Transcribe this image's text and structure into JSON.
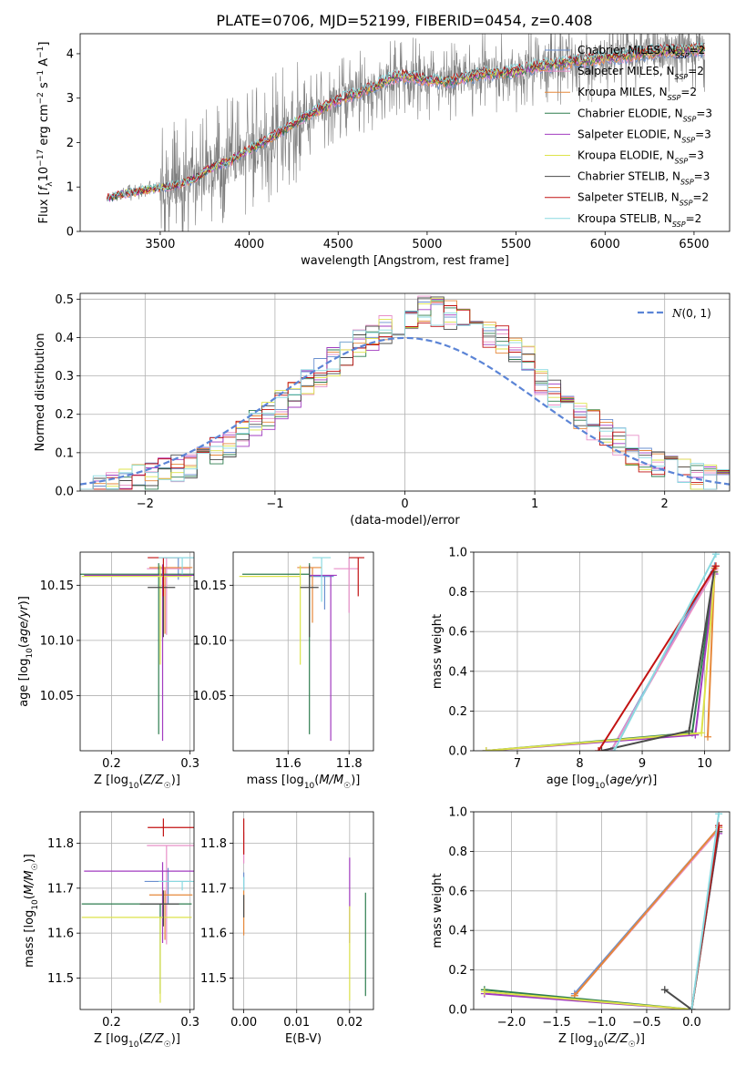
{
  "title": "PLATE=0706, MJD=52199, FIBERID=0454, z=0.408",
  "colors": {
    "Chabrier MILES": "#6a8fcf",
    "Salpeter MILES": "#e88fc8",
    "Kroupa MILES": "#e6883a",
    "Chabrier ELODIE": "#2e7d4f",
    "Salpeter ELODIE": "#a23bc0",
    "Kroupa ELODIE": "#dde34a",
    "Chabrier STELIB": "#4a4a4a",
    "Salpeter STELIB": "#c21212",
    "Kroupa STELIB": "#8ad9e0",
    "data": "#7f7f7f"
  },
  "chart_data": [
    {
      "id": "spectrum",
      "type": "line",
      "xlabel": "wavelength [Angstrom, rest frame]",
      "ylabel": "Flux [f_λ 10^-17 erg cm^-2 s^-1 A^-1]",
      "xlim": [
        3050,
        6700
      ],
      "ylim": [
        0,
        4.45
      ],
      "xticks": [
        3500,
        4000,
        4500,
        5000,
        5500,
        6000,
        6500
      ],
      "yticks": [
        0,
        1,
        2,
        3,
        4
      ],
      "legend": "right",
      "legend_entries": [
        {
          "label": "Chabrier MILES, N",
          "sub": "SSP",
          "tail": "=2"
        },
        {
          "label": "Salpeter MILES, N",
          "sub": "SSP",
          "tail": "=2"
        },
        {
          "label": "Kroupa MILES, N",
          "sub": "SSP",
          "tail": "=2"
        },
        {
          "label": "Chabrier ELODIE, N",
          "sub": "SSP",
          "tail": "=3"
        },
        {
          "label": "Salpeter ELODIE, N",
          "sub": "SSP",
          "tail": "=3"
        },
        {
          "label": "Kroupa ELODIE, N",
          "sub": "SSP",
          "tail": "=3"
        },
        {
          "label": "Chabrier STELIB, N",
          "sub": "SSP",
          "tail": "=3"
        },
        {
          "label": "Salpeter STELIB, N",
          "sub": "SSP",
          "tail": "=2"
        },
        {
          "label": "Kroupa STELIB, N",
          "sub": "SSP",
          "tail": "=2"
        }
      ],
      "model_continuum": {
        "x": [
          3200,
          3300,
          3400,
          3500,
          3600,
          3700,
          3800,
          3900,
          4000,
          4100,
          4200,
          4300,
          4400,
          4500,
          4600,
          4700,
          4800,
          4900,
          5000,
          5100,
          5200,
          5300,
          5400,
          5500,
          5600,
          5700,
          5800,
          5900,
          6000,
          6100,
          6200,
          6300,
          6400,
          6500
        ],
        "y": [
          0.75,
          0.85,
          0.92,
          0.98,
          1.05,
          1.2,
          1.45,
          1.6,
          1.85,
          2.05,
          2.3,
          2.55,
          2.75,
          2.95,
          3.1,
          3.25,
          3.45,
          3.5,
          3.4,
          3.35,
          3.45,
          3.55,
          3.55,
          3.6,
          3.7,
          3.75,
          3.8,
          3.85,
          3.9,
          3.95,
          4.0,
          4.05,
          4.05,
          4.1
        ]
      }
    },
    {
      "id": "residuals",
      "type": "line",
      "xlabel": "(data-model)/error",
      "ylabel": "Normed distribution",
      "xlim": [
        -2.5,
        2.5
      ],
      "ylim": [
        0,
        0.515
      ],
      "xticks": [
        -2,
        -1,
        0,
        1,
        2
      ],
      "yticks": [
        0.0,
        0.1,
        0.2,
        0.3,
        0.4,
        0.5
      ],
      "grid": true,
      "legend": "top-right",
      "legend_label": "N(0, 1)",
      "histogram_bin_width": 0.1
    },
    {
      "id": "age-vs-Z",
      "type": "scatter",
      "xlabel": "Z [log10(Z/Z☉)]",
      "ylabel": "age  [log10(age/yr)]",
      "xlim": [
        0.16,
        0.305
      ],
      "ylim": [
        10.0,
        10.18
      ],
      "xticks": [
        0.2,
        0.3
      ],
      "yticks": [
        10.05,
        10.1,
        10.15
      ],
      "grid": true,
      "points": [
        {
          "model": "Chabrier MILES",
          "x": 0.285,
          "y": 10.175,
          "xerr": [
            0.02,
            0.02
          ],
          "yerr": [
            0.02,
            0.0
          ]
        },
        {
          "model": "Salpeter MILES",
          "x": 0.27,
          "y": 10.165,
          "xerr": [
            0.025,
            0.03
          ],
          "yerr": [
            0.06,
            0.01
          ]
        },
        {
          "model": "Kroupa MILES",
          "x": 0.268,
          "y": 10.166,
          "xerr": [
            0.02,
            0.035
          ],
          "yerr": [
            0.06,
            0.0
          ]
        },
        {
          "model": "Chabrier ELODIE",
          "x": 0.26,
          "y": 10.16,
          "xerr": [
            0.1,
            0.05
          ],
          "yerr": [
            0.145,
            0.01
          ]
        },
        {
          "model": "Salpeter ELODIE",
          "x": 0.265,
          "y": 10.159,
          "xerr": [
            0.1,
            0.04
          ],
          "yerr": [
            0.15,
            0.01
          ]
        },
        {
          "model": "Kroupa ELODIE",
          "x": 0.262,
          "y": 10.158,
          "xerr": [
            0.1,
            0.04
          ],
          "yerr": [
            0.08,
            0.01
          ]
        },
        {
          "model": "Chabrier STELIB",
          "x": 0.266,
          "y": 10.148,
          "xerr": [
            0.02,
            0.015
          ],
          "yerr": [
            0.045,
            0.02
          ]
        },
        {
          "model": "Salpeter STELIB",
          "x": 0.266,
          "y": 10.175,
          "xerr": [
            0.02,
            0.02
          ],
          "yerr": [
            0.035,
            0.0
          ]
        },
        {
          "model": "Kroupa STELIB",
          "x": 0.29,
          "y": 10.175,
          "xerr": [
            0.03,
            0.015
          ],
          "yerr": [
            0.015,
            0.0
          ]
        }
      ]
    },
    {
      "id": "age-vs-mass",
      "type": "scatter",
      "xlabel": "mass [log10(M/M☉)]",
      "ylabel": "",
      "xlim": [
        11.42,
        11.88
      ],
      "ylim": [
        10.0,
        10.18
      ],
      "xticks": [
        11.6,
        11.8
      ],
      "yticks": [
        10.05,
        10.1,
        10.15
      ],
      "grid": true,
      "points": [
        {
          "model": "Chabrier MILES",
          "x": 11.72,
          "y": 10.158,
          "xerr": [
            0.05,
            0.03
          ],
          "yerr": [
            0.03,
            0.0
          ]
        },
        {
          "model": "Salpeter MILES",
          "x": 11.8,
          "y": 10.165,
          "xerr": [
            0.05,
            0.03
          ],
          "yerr": [
            0.04,
            0.01
          ]
        },
        {
          "model": "Kroupa MILES",
          "x": 11.68,
          "y": 10.166,
          "xerr": [
            0.05,
            0.03
          ],
          "yerr": [
            0.05,
            0.0
          ]
        },
        {
          "model": "Chabrier ELODIE",
          "x": 11.67,
          "y": 10.16,
          "xerr": [
            0.22,
            0.0
          ],
          "yerr": [
            0.145,
            0.01
          ]
        },
        {
          "model": "Salpeter ELODIE",
          "x": 11.74,
          "y": 10.159,
          "xerr": [
            0.07,
            0.02
          ],
          "yerr": [
            0.15,
            0.0
          ]
        },
        {
          "model": "Kroupa ELODIE",
          "x": 11.64,
          "y": 10.158,
          "xerr": [
            0.2,
            0.0
          ],
          "yerr": [
            0.08,
            0.01
          ]
        },
        {
          "model": "Chabrier STELIB",
          "x": 11.67,
          "y": 10.148,
          "xerr": [
            0.03,
            0.03
          ],
          "yerr": [
            0.045,
            0.02
          ]
        },
        {
          "model": "Salpeter STELIB",
          "x": 11.83,
          "y": 10.175,
          "xerr": [
            0.03,
            0.02
          ],
          "yerr": [
            0.035,
            0.0
          ]
        },
        {
          "model": "Kroupa STELIB",
          "x": 11.71,
          "y": 10.175,
          "xerr": [
            0.03,
            0.03
          ],
          "yerr": [
            0.04,
            0.0
          ]
        }
      ]
    },
    {
      "id": "weight-vs-age",
      "type": "line",
      "xlabel": "age  [log10(age/yr)]",
      "ylabel": "mass weight",
      "xlim": [
        6.3,
        10.4
      ],
      "ylim": [
        0,
        1.0
      ],
      "xticks": [
        7,
        8,
        9,
        10
      ],
      "yticks": [
        0.0,
        0.2,
        0.4,
        0.6,
        0.8,
        1.0
      ],
      "grid": true,
      "series": [
        {
          "model": "Chabrier MILES",
          "x": [
            8.5,
            10.16
          ],
          "y": [
            0.0,
            0.93
          ]
        },
        {
          "model": "Salpeter MILES",
          "x": [
            8.5,
            10.16
          ],
          "y": [
            0.0,
            0.91
          ]
        },
        {
          "model": "Kroupa MILES",
          "x": [
            10.05,
            10.16
          ],
          "y": [
            0.07,
            0.92
          ]
        },
        {
          "model": "Chabrier ELODIE",
          "x": [
            6.5,
            9.8,
            10.16
          ],
          "y": [
            0.0,
            0.09,
            0.9
          ]
        },
        {
          "model": "Salpeter ELODIE",
          "x": [
            6.5,
            9.85,
            10.16
          ],
          "y": [
            0.0,
            0.08,
            0.89
          ]
        },
        {
          "model": "Kroupa ELODIE",
          "x": [
            6.5,
            9.95,
            10.16
          ],
          "y": [
            0.0,
            0.09,
            0.9
          ]
        },
        {
          "model": "Chabrier STELIB",
          "x": [
            8.35,
            9.75,
            10.15
          ],
          "y": [
            0.0,
            0.1,
            0.9
          ]
        },
        {
          "model": "Salpeter STELIB",
          "x": [
            8.3,
            10.18
          ],
          "y": [
            0.0,
            0.93
          ]
        },
        {
          "model": "Kroupa STELIB",
          "x": [
            8.55,
            10.18
          ],
          "y": [
            0.0,
            0.99
          ]
        }
      ]
    },
    {
      "id": "mass-vs-Z",
      "type": "scatter",
      "xlabel": "Z [log10(Z/Z☉)]",
      "ylabel": "mass [log10(M/M☉)]",
      "xlim": [
        0.16,
        0.305
      ],
      "ylim": [
        11.43,
        11.87
      ],
      "xticks": [
        0.2,
        0.3
      ],
      "yticks": [
        11.5,
        11.6,
        11.7,
        11.8
      ],
      "grid": true,
      "points": [
        {
          "model": "Chabrier MILES",
          "x": 0.272,
          "y": 11.715,
          "xerr": [
            0.03,
            0.03
          ],
          "yerr": [
            0.05,
            0.03
          ]
        },
        {
          "model": "Salpeter MILES",
          "x": 0.27,
          "y": 11.795,
          "xerr": [
            0.025,
            0.035
          ],
          "yerr": [
            0.22,
            0.0
          ]
        },
        {
          "model": "Kroupa MILES",
          "x": 0.268,
          "y": 11.685,
          "xerr": [
            0.02,
            0.035
          ],
          "yerr": [
            0.1,
            0.01
          ]
        },
        {
          "model": "Chabrier ELODIE",
          "x": 0.262,
          "y": 11.665,
          "xerr": [
            0.1,
            0.04
          ],
          "yerr": [
            0.2,
            0.0
          ]
        },
        {
          "model": "Salpeter ELODIE",
          "x": 0.265,
          "y": 11.738,
          "xerr": [
            0.1,
            0.04
          ],
          "yerr": [
            0.16,
            0.02
          ]
        },
        {
          "model": "Kroupa ELODIE",
          "x": 0.262,
          "y": 11.635,
          "xerr": [
            0.1,
            0.04
          ],
          "yerr": [
            0.19,
            0.0
          ]
        },
        {
          "model": "Chabrier STELIB",
          "x": 0.266,
          "y": 11.665,
          "xerr": [
            0.03,
            0.02
          ],
          "yerr": [
            0.05,
            0.03
          ]
        },
        {
          "model": "Salpeter STELIB",
          "x": 0.266,
          "y": 11.835,
          "xerr": [
            0.02,
            0.04
          ],
          "yerr": [
            0.02,
            0.02
          ]
        },
        {
          "model": "Kroupa STELIB",
          "x": 0.29,
          "y": 11.715,
          "xerr": [
            0.03,
            0.02
          ],
          "yerr": [
            0.02,
            0.0
          ]
        }
      ]
    },
    {
      "id": "mass-vs-EBV",
      "type": "scatter",
      "xlabel": "E(B-V)",
      "ylabel": "",
      "xlim": [
        -0.002,
        0.0245
      ],
      "ylim": [
        11.43,
        11.87
      ],
      "xticks": [
        0.0,
        0.01,
        0.02
      ],
      "yticks": [
        11.5,
        11.6,
        11.7,
        11.8
      ],
      "grid": true,
      "points": [
        {
          "model": "Chabrier MILES",
          "x": 0.0,
          "y": 11.715,
          "yerr": [
            0.02,
            0.02
          ]
        },
        {
          "model": "Salpeter MILES",
          "x": 0.0,
          "y": 11.795,
          "yerr": [
            0.04,
            0.03
          ]
        },
        {
          "model": "Kroupa MILES",
          "x": 0.0,
          "y": 11.685,
          "yerr": [
            0.09,
            0.01
          ]
        },
        {
          "model": "Chabrier ELODIE",
          "x": 0.023,
          "y": 11.6,
          "yerr": [
            0.14,
            0.09
          ]
        },
        {
          "model": "Salpeter ELODIE",
          "x": 0.02,
          "y": 11.738,
          "yerr": [
            0.16,
            0.03
          ]
        },
        {
          "model": "Kroupa ELODIE",
          "x": 0.02,
          "y": 11.6,
          "yerr": [
            0.15,
            0.06
          ]
        },
        {
          "model": "Chabrier STELIB",
          "x": 0.0,
          "y": 11.665,
          "yerr": [
            0.03,
            0.02
          ]
        },
        {
          "model": "Salpeter STELIB",
          "x": 0.0,
          "y": 11.835,
          "yerr": [
            0.06,
            0.02
          ]
        },
        {
          "model": "Kroupa STELIB",
          "x": 0.0,
          "y": 11.715,
          "yerr": [
            0.02,
            0.01
          ]
        }
      ]
    },
    {
      "id": "weight-vs-Z",
      "type": "line",
      "xlabel": "Z [log10(Z/Z☉)]",
      "ylabel": "mass weight",
      "xlim": [
        -2.42,
        0.42
      ],
      "ylim": [
        0,
        1.0
      ],
      "xticks": [
        -2.0,
        -1.5,
        -1.0,
        -0.5,
        0.0
      ],
      "yticks": [
        0.0,
        0.2,
        0.4,
        0.6,
        0.8,
        1.0
      ],
      "grid": true,
      "series": [
        {
          "model": "Chabrier MILES",
          "x": [
            -1.3,
            0.3
          ],
          "y": [
            0.08,
            0.92
          ]
        },
        {
          "model": "Salpeter MILES",
          "x": [
            -1.3,
            0.3
          ],
          "y": [
            0.07,
            0.91
          ]
        },
        {
          "model": "Kroupa MILES",
          "x": [
            -1.3,
            0.3
          ],
          "y": [
            0.07,
            0.92
          ]
        },
        {
          "model": "Chabrier ELODIE",
          "x": [
            -2.3,
            0.0,
            0.3
          ],
          "y": [
            0.1,
            0.0,
            0.9
          ]
        },
        {
          "model": "Salpeter ELODIE",
          "x": [
            -2.3,
            0.0,
            0.3
          ],
          "y": [
            0.08,
            0.0,
            0.89
          ]
        },
        {
          "model": "Kroupa ELODIE",
          "x": [
            -2.3,
            0.0,
            0.3
          ],
          "y": [
            0.09,
            0.0,
            0.9
          ]
        },
        {
          "model": "Chabrier STELIB",
          "x": [
            -0.3,
            0.0,
            0.3
          ],
          "y": [
            0.1,
            0.0,
            0.9
          ]
        },
        {
          "model": "Salpeter STELIB",
          "x": [
            0.0,
            0.3
          ],
          "y": [
            0.0,
            0.93
          ]
        },
        {
          "model": "Kroupa STELIB",
          "x": [
            0.0,
            0.3
          ],
          "y": [
            0.0,
            0.99
          ]
        }
      ]
    }
  ]
}
